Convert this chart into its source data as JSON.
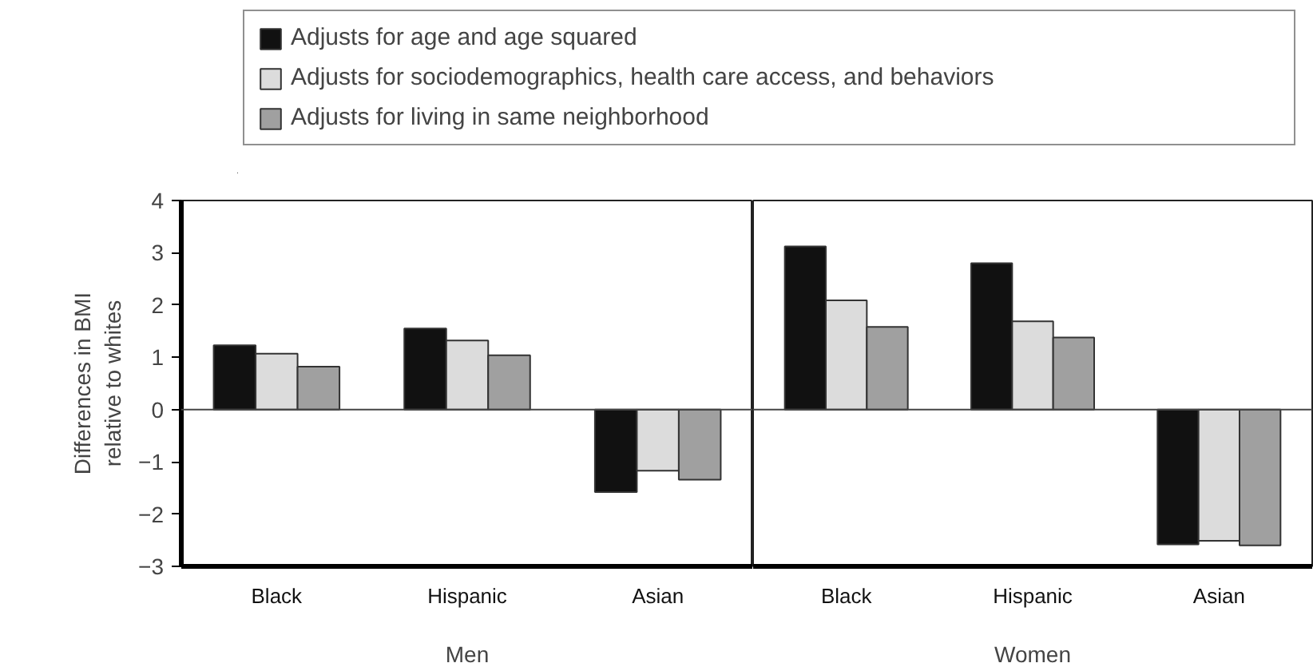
{
  "chart_data": [
    {
      "type": "bar",
      "ylabel": "Differences in BMI relative to whites",
      "xlabel": "Men",
      "categories": [
        "Black",
        "Hispanic",
        "Asian"
      ],
      "ylim": [
        -3,
        4
      ],
      "yticks": [
        -3,
        -2,
        -1,
        0,
        1,
        2,
        3,
        4
      ],
      "grid": false,
      "legend": "top",
      "ref_lines": [
        {
          "axis": "y",
          "value": 0
        }
      ],
      "series": [
        {
          "name": "Adjusts for age and age squared",
          "color": "#111111",
          "values": [
            1.23,
            1.55,
            -1.58
          ]
        },
        {
          "name": "Adjusts for sociodemographics, health care access, and behaviors",
          "color": "#dcdcdc",
          "values": [
            1.07,
            1.32,
            -1.17
          ]
        },
        {
          "name": "Adjusts for living in same neighborhood",
          "color": "#a0a0a0",
          "values": [
            0.82,
            1.04,
            -1.34
          ]
        }
      ]
    },
    {
      "type": "bar",
      "xlabel": "Women",
      "categories": [
        "Black",
        "Hispanic",
        "Asian"
      ],
      "ylim": [
        -3,
        4
      ],
      "tick_labels": "x",
      "grid": false,
      "ref_lines": [
        {
          "axis": "y",
          "value": 0
        }
      ],
      "series": [
        {
          "color": "#111111",
          "values": [
            3.12,
            2.8,
            -2.58
          ]
        },
        {
          "color": "#dcdcdc",
          "values": [
            2.09,
            1.69,
            -2.51
          ]
        },
        {
          "color": "#a0a0a0",
          "values": [
            1.58,
            1.38,
            -2.6
          ]
        }
      ]
    }
  ]
}
